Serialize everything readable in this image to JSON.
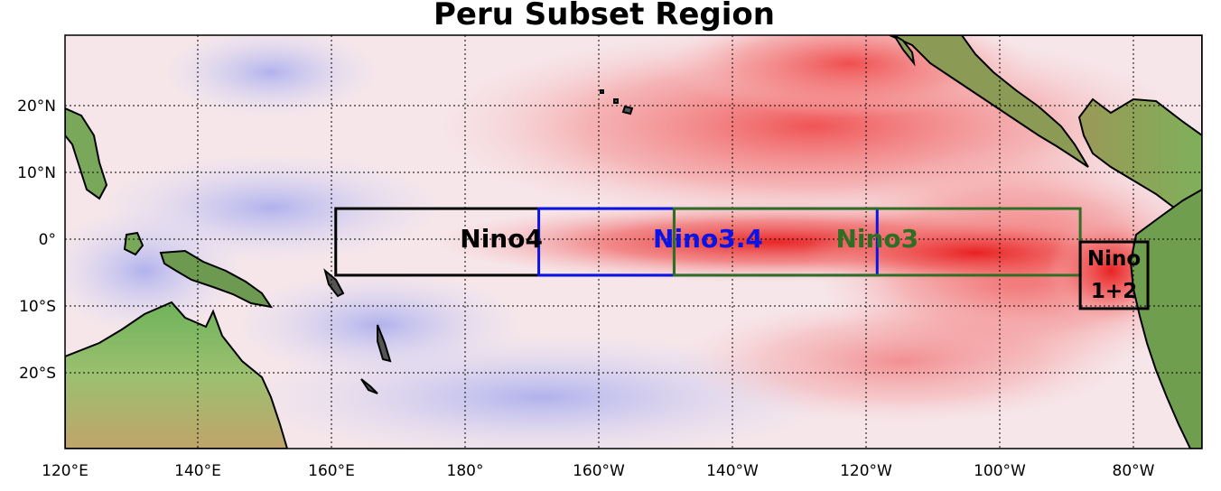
{
  "title": "Peru Subset Region",
  "lon_ticks": [
    "120°E",
    "140°E",
    "160°E",
    "180°",
    "160°W",
    "140°W",
    "120°W",
    "100°W",
    "80°W"
  ],
  "lat_ticks": [
    "20°N",
    "10°N",
    "0°",
    "10°S",
    "20°S"
  ],
  "extent": {
    "lon_min": 120,
    "lon_max": 288,
    "lat_min": -31,
    "lat_max": 31
  },
  "regions": [
    {
      "id": "nino4",
      "label_line1": "Nino4",
      "label_line2": "",
      "color": "#000000",
      "lon": [
        160,
        210
      ],
      "lat": [
        -5,
        5
      ]
    },
    {
      "id": "nino34",
      "label_line1": "Nino3.4",
      "label_line2": "",
      "color": "#0a14e6",
      "lon": [
        190,
        240
      ],
      "lat": [
        -5,
        5
      ]
    },
    {
      "id": "nino3",
      "label_line1": "Nino3",
      "label_line2": "",
      "color": "#2f6e25",
      "lon": [
        210,
        270
      ],
      "lat": [
        -5,
        5
      ]
    },
    {
      "id": "nino12",
      "label_line1": "Nino",
      "label_line2": "1+2",
      "color": "#000000",
      "lon": [
        270,
        280
      ],
      "lat": [
        -10,
        0
      ]
    }
  ],
  "colors": {
    "warm": "#f4b4b4",
    "warm_strong": "#ee4a4a",
    "cool": "#c6c8f2",
    "land": "#8fae5e",
    "land_high": "#b08a4e"
  }
}
